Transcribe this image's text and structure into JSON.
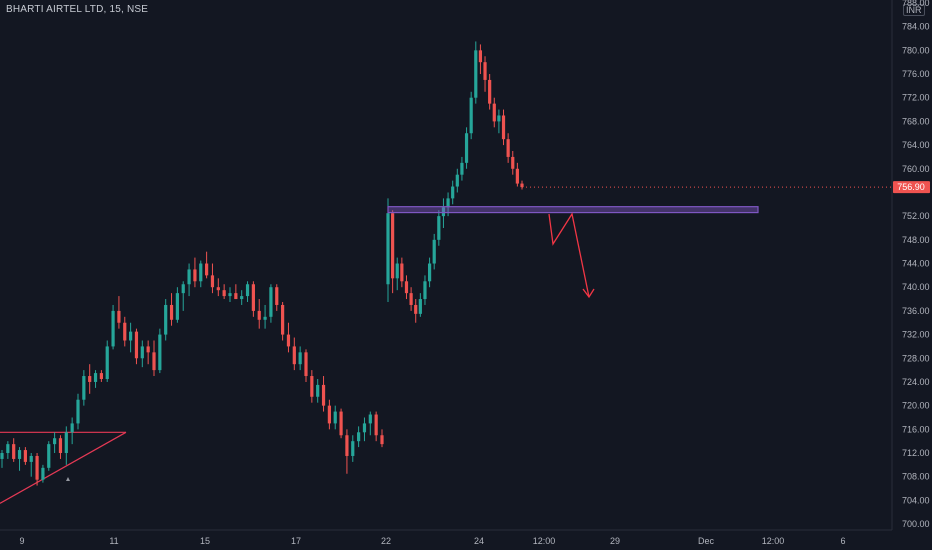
{
  "header": {
    "title": "BHARTI AIRTEL LTD, 15, NSE",
    "currency": "INR"
  },
  "colors": {
    "background": "#131722",
    "up": "#26a69a",
    "down": "#ef5350",
    "axis_text": "#b2b5be",
    "resistance": "#7e57c2",
    "triangle": "#e53955",
    "projection": "#f23645"
  },
  "chart_data": {
    "type": "candlestick",
    "ylim": [
      699,
      788.5
    ],
    "yticks": [
      "788.00",
      "784.00",
      "780.00",
      "776.00",
      "772.00",
      "768.00",
      "764.00",
      "760.00",
      "752.00",
      "748.00",
      "744.00",
      "740.00",
      "736.00",
      "732.00",
      "728.00",
      "724.00",
      "720.00",
      "716.00",
      "712.00",
      "708.00",
      "704.00",
      "700.00"
    ],
    "xticks": [
      "9",
      "11",
      "15",
      "17",
      "22",
      "24",
      "12:00",
      "29",
      "Dec",
      "12:00",
      "6"
    ],
    "last_price": "756.90",
    "last_price_value": 756.9,
    "resistance_zone": [
      752.6,
      753.6
    ],
    "candles": [
      [
        711,
        712.5,
        709.5,
        712
      ],
      [
        712,
        714,
        711,
        713.5
      ],
      [
        713.5,
        714.5,
        710.5,
        711
      ],
      [
        711,
        713,
        709,
        712.5
      ],
      [
        712.5,
        713,
        710,
        710.5
      ],
      [
        710.5,
        712,
        708,
        711.5
      ],
      [
        711.5,
        712,
        706.5,
        707.5
      ],
      [
        707.5,
        710,
        707,
        709.5
      ],
      [
        709.5,
        714,
        709,
        713.5
      ],
      [
        713.5,
        715.5,
        712,
        714.5
      ],
      [
        714.5,
        715,
        711,
        712
      ],
      [
        712,
        716.5,
        710,
        715.5
      ],
      [
        715.5,
        718,
        713.5,
        717
      ],
      [
        717,
        722,
        716,
        721
      ],
      [
        721,
        726,
        720,
        725
      ],
      [
        725,
        727,
        722,
        724
      ],
      [
        724,
        726,
        723,
        725.5
      ],
      [
        725.5,
        726,
        724,
        724.5
      ],
      [
        724.5,
        731,
        724,
        730
      ],
      [
        730,
        737,
        729.5,
        736
      ],
      [
        736,
        738.5,
        733,
        734
      ],
      [
        734,
        735,
        730,
        731
      ],
      [
        731,
        734,
        729,
        732.5
      ],
      [
        732.5,
        733,
        727,
        728
      ],
      [
        728,
        731,
        726.5,
        730
      ],
      [
        730,
        731,
        727,
        729
      ],
      [
        729,
        731,
        725,
        726
      ],
      [
        726,
        733,
        725.5,
        732
      ],
      [
        732,
        738,
        731,
        737
      ],
      [
        737,
        739,
        733.5,
        734.5
      ],
      [
        734.5,
        740,
        734,
        739
      ],
      [
        739,
        741,
        736,
        740.5
      ],
      [
        740.5,
        744,
        738.5,
        743
      ],
      [
        743,
        745,
        740,
        741
      ],
      [
        741,
        744.5,
        740,
        744
      ],
      [
        744,
        746,
        741.5,
        742
      ],
      [
        742,
        744,
        739,
        740
      ],
      [
        740,
        741.5,
        738.5,
        739.5
      ],
      [
        739.5,
        740.5,
        738,
        738.5
      ],
      [
        738.5,
        740,
        737.5,
        739
      ],
      [
        739,
        740.5,
        738,
        738
      ],
      [
        738,
        739.5,
        737,
        738.5
      ],
      [
        738.5,
        741,
        737.5,
        740.5
      ],
      [
        740.5,
        741,
        735,
        736
      ],
      [
        736,
        738,
        733,
        734.5
      ],
      [
        734.5,
        737,
        733,
        735
      ],
      [
        735,
        740.5,
        734,
        740
      ],
      [
        740,
        740.5,
        736,
        737
      ],
      [
        737,
        737.5,
        731,
        732
      ],
      [
        732,
        734,
        729,
        730
      ],
      [
        730,
        731.5,
        726,
        727
      ],
      [
        727,
        730,
        726,
        729
      ],
      [
        729,
        729.5,
        724,
        725
      ],
      [
        725,
        726,
        720.5,
        721.5
      ],
      [
        721.5,
        724.5,
        720.5,
        723.5
      ],
      [
        723.5,
        725,
        719,
        720
      ],
      [
        720,
        721,
        716,
        717
      ],
      [
        717,
        720,
        716,
        719
      ],
      [
        719,
        719.5,
        714.5,
        715
      ],
      [
        715,
        716,
        708.5,
        711.5
      ],
      [
        711.5,
        715,
        710.5,
        714
      ],
      [
        714,
        716.5,
        713,
        715.5
      ],
      [
        715.5,
        718,
        714,
        717
      ],
      [
        717,
        719,
        715,
        718.5
      ],
      [
        718.5,
        719,
        714,
        715
      ],
      [
        715,
        716,
        713,
        713.5
      ],
      [
        740.5,
        755,
        737.5,
        752.5
      ],
      [
        752.5,
        753,
        739,
        741.5
      ],
      [
        741.5,
        745,
        739.5,
        744
      ],
      [
        744,
        745,
        740,
        741
      ],
      [
        741,
        742,
        738,
        739
      ],
      [
        739,
        740,
        736,
        737
      ],
      [
        737,
        738,
        734,
        735.5
      ],
      [
        735.5,
        739,
        735,
        738
      ],
      [
        738,
        742,
        737,
        741
      ],
      [
        741,
        745,
        740,
        744
      ],
      [
        744,
        749,
        743,
        748
      ],
      [
        748,
        753,
        747,
        752
      ],
      [
        752,
        755,
        750,
        753.5
      ],
      [
        753.5,
        756,
        752,
        755
      ],
      [
        755,
        758,
        754,
        757
      ],
      [
        757,
        760,
        756,
        759
      ],
      [
        759,
        762,
        758,
        761
      ],
      [
        761,
        767,
        760,
        766
      ],
      [
        766,
        773,
        765,
        772
      ],
      [
        772,
        781.5,
        771,
        780
      ],
      [
        780,
        781,
        776,
        778
      ],
      [
        778,
        779,
        773,
        775
      ],
      [
        775,
        776,
        770,
        771
      ],
      [
        771,
        772,
        767,
        768
      ],
      [
        768,
        770,
        766,
        769
      ],
      [
        769,
        770,
        764,
        765
      ],
      [
        765,
        766,
        761,
        762
      ],
      [
        762,
        763,
        759,
        760
      ],
      [
        760,
        761,
        757,
        757.5
      ],
      [
        757.5,
        758,
        756.5,
        756.9
      ]
    ]
  }
}
